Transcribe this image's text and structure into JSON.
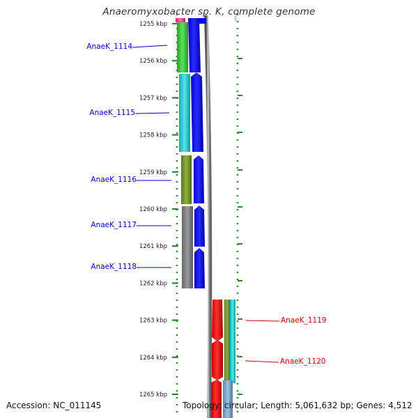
{
  "title": "Anaeromyxobacter sp. K, complete genome",
  "footer": {
    "accession": "Accession: NC_011145",
    "topology": "Topology: circular; Length: 5,061,632 bp; Genes: 4,512"
  },
  "axis_ticks": [
    "1255 kbp",
    "1256 kbp",
    "1257 kbp",
    "1258 kbp",
    "1259 kbp",
    "1260 kbp",
    "1261 kbp",
    "1262 kbp",
    "1263 kbp",
    "1264 kbp",
    "1265 kbp"
  ],
  "genes": [
    {
      "id": "AnaeK_1114",
      "label": "AnaeK_1114",
      "strand": "left",
      "color": "#33cc33",
      "label_color": "#0000cc"
    },
    {
      "id": "AnaeK_1115",
      "label": "AnaeK_1115",
      "strand": "left",
      "color": "#22cccc",
      "label_color": "#0000cc"
    },
    {
      "id": "AnaeK_1116",
      "label": "AnaeK_1116",
      "strand": "left",
      "color": "#6b8e23",
      "label_color": "#0000cc"
    },
    {
      "id": "AnaeK_1117",
      "label": "AnaeK_1117",
      "strand": "left",
      "color": "#777777",
      "label_color": "#0000cc"
    },
    {
      "id": "AnaeK_1118",
      "label": "AnaeK_1118",
      "strand": "left",
      "color": "#777777",
      "label_color": "#0000cc"
    },
    {
      "id": "AnaeK_1119",
      "label": "AnaeK_1119",
      "strand": "right",
      "color": "#22cccc",
      "label_color": "#cc0000"
    },
    {
      "id": "AnaeK_1120",
      "label": "AnaeK_1120",
      "strand": "right",
      "color": "#22cccc",
      "label_color": "#cc0000"
    }
  ],
  "colors": {
    "forward_strand": "#0000ff",
    "reverse_strand": "#ff0000",
    "tick": "#228b22",
    "backbone": "#999999"
  }
}
